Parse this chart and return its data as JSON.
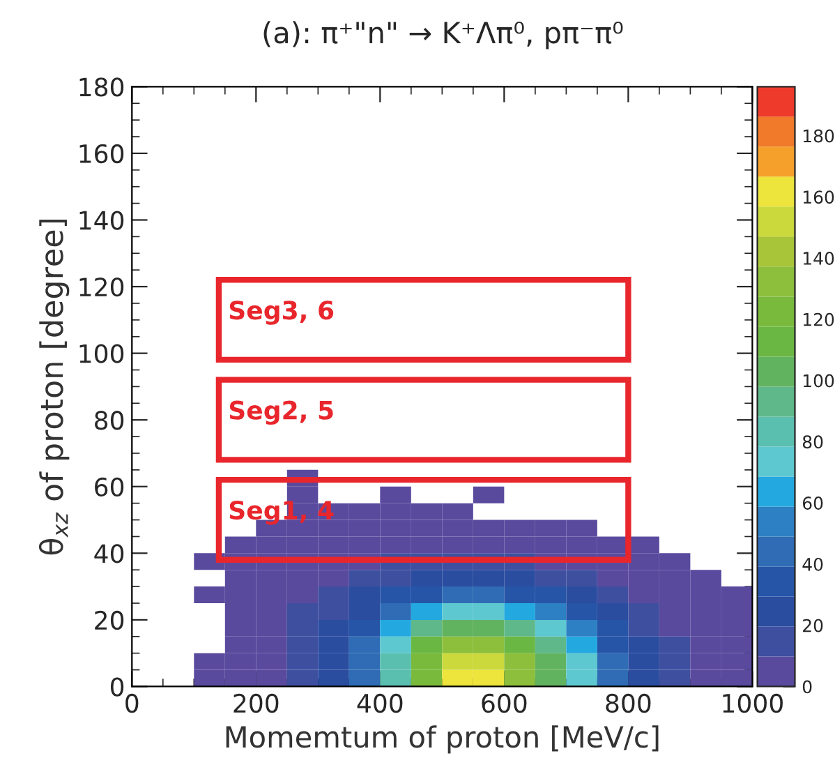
{
  "chart_data": {
    "type": "heatmap",
    "title": "(a): π⁺\"n\" → K⁺Λπ⁰, pπ⁻π⁰",
    "xlabel": "Momemtum of proton [MeV/c]",
    "ylabel": "θ$_{xz}$ of proton [degree]",
    "x": [
      25,
      75,
      125,
      175,
      225,
      275,
      325,
      375,
      425,
      475,
      525,
      575,
      625,
      675,
      725,
      775,
      825,
      875,
      925,
      975
    ],
    "y": [
      2.5,
      7.5,
      12.5,
      17.5,
      22.5,
      27.5,
      32.5,
      37.5,
      42.5,
      47.5,
      52.5,
      57.5,
      62.5
    ],
    "cells": [
      [
        null,
        null,
        1,
        3,
        8,
        15,
        25,
        45,
        80,
        120,
        160,
        160,
        130,
        100,
        70,
        40,
        22,
        12,
        6,
        3
      ],
      [
        null,
        null,
        1,
        3,
        8,
        15,
        25,
        45,
        85,
        125,
        150,
        150,
        130,
        100,
        70,
        40,
        22,
        12,
        6,
        3
      ],
      [
        null,
        null,
        null,
        2,
        7,
        14,
        22,
        40,
        75,
        110,
        130,
        130,
        115,
        90,
        62,
        36,
        20,
        10,
        5,
        2
      ],
      [
        null,
        null,
        null,
        2,
        6,
        12,
        20,
        35,
        60,
        90,
        100,
        100,
        90,
        72,
        50,
        30,
        16,
        8,
        4,
        2
      ],
      [
        null,
        null,
        null,
        1,
        5,
        10,
        17,
        28,
        45,
        60,
        70,
        70,
        62,
        50,
        36,
        22,
        12,
        6,
        3,
        1
      ],
      [
        null,
        null,
        1,
        1,
        4,
        8,
        13,
        20,
        30,
        38,
        42,
        42,
        38,
        30,
        22,
        14,
        8,
        4,
        2,
        1
      ],
      [
        null,
        null,
        null,
        1,
        3,
        6,
        9,
        13,
        18,
        22,
        24,
        22,
        20,
        16,
        12,
        8,
        5,
        2,
        1,
        null
      ],
      [
        null,
        null,
        1,
        1,
        2,
        4,
        6,
        8,
        10,
        12,
        12,
        11,
        10,
        8,
        6,
        4,
        2,
        1,
        null,
        null
      ],
      [
        null,
        null,
        null,
        1,
        1,
        2,
        3,
        4,
        5,
        5,
        5,
        5,
        4,
        3,
        2,
        1,
        1,
        null,
        null,
        null
      ],
      [
        null,
        null,
        null,
        null,
        1,
        1,
        1,
        2,
        2,
        2,
        2,
        2,
        1,
        1,
        1,
        null,
        null,
        null,
        null,
        null
      ],
      [
        null,
        null,
        null,
        null,
        null,
        1,
        1,
        1,
        1,
        1,
        1,
        null,
        null,
        null,
        null,
        null,
        null,
        null,
        null,
        null
      ],
      [
        null,
        null,
        null,
        null,
        null,
        1,
        null,
        null,
        1,
        null,
        null,
        1,
        null,
        null,
        null,
        null,
        null,
        null,
        null,
        null
      ],
      [
        null,
        null,
        null,
        null,
        null,
        1,
        null,
        null,
        null,
        null,
        null,
        null,
        null,
        null,
        null,
        null,
        null,
        null,
        null,
        null
      ]
    ],
    "colors": [
      "#5a4a9e",
      "#3f4fa0",
      "#2a4da0",
      "#2655a8",
      "#2f6cb5",
      "#2d80c3",
      "#23a9e0",
      "#5ec8d0",
      "#5bbfb0",
      "#5fb88a",
      "#62b35f",
      "#6bb743",
      "#79ba3c",
      "#8dbf3c",
      "#a8c53a",
      "#cbd93c",
      "#ede43c",
      "#f6a02c",
      "#f07a2a",
      "#ee3a2a"
    ],
    "clim": [
      0,
      196
    ],
    "cticks": [
      0,
      20,
      40,
      60,
      80,
      100,
      120,
      140,
      160,
      180
    ],
    "xlim": [
      0,
      1000
    ],
    "xticks": [
      0,
      200,
      400,
      600,
      800,
      1000
    ],
    "ylim": [
      0,
      180
    ],
    "yticks": [
      0,
      20,
      40,
      60,
      80,
      100,
      120,
      140,
      160,
      180
    ],
    "annotations": [
      "Seg1, 4",
      "Seg2, 5",
      "Seg3, 6"
    ]
  }
}
